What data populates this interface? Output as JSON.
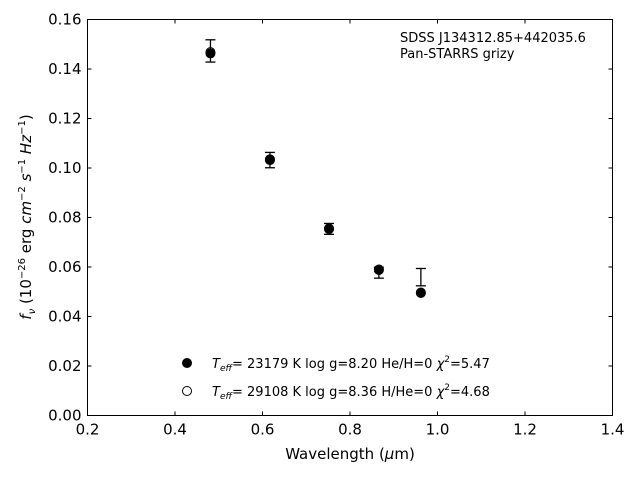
{
  "chart_data": {
    "type": "scatter",
    "xlabel": "Wavelength (μm)",
    "ylabel": "f_ν (10^-26 erg cm^-2 s^-1 Hz^-1)",
    "xlim": [
      0.2,
      1.4
    ],
    "ylim": [
      0.0,
      0.16
    ],
    "x_ticks": [
      "0.2",
      "0.4",
      "0.6",
      "0.8",
      "1.0",
      "1.2",
      "1.4"
    ],
    "y_ticks": [
      "0.00",
      "0.02",
      "0.04",
      "0.06",
      "0.08",
      "0.10",
      "0.12",
      "0.14",
      "0.16"
    ],
    "annotation": [
      "SDSS J134312.85+442035.6",
      "Pan-STARRS grizy"
    ],
    "observed": {
      "x": [
        0.481,
        0.617,
        0.752,
        0.866,
        0.962
      ],
      "y": [
        0.1473,
        0.1032,
        0.0754,
        0.0577,
        0.0559
      ],
      "err": [
        0.0045,
        0.0031,
        0.0022,
        0.0022,
        0.0035
      ]
    },
    "series": [
      {
        "name": "T_eff= 23179 K  log g=8.20  He/H=0  χ²=5.47",
        "marker": "filled-circle",
        "x": [
          0.481,
          0.617,
          0.752,
          0.866,
          0.962
        ],
        "y": [
          0.1463,
          0.1032,
          0.0753,
          0.059,
          0.0495
        ]
      },
      {
        "name": "T_eff= 29108 K  log g=8.36  H/He=0  χ²=4.68",
        "marker": "open-circle",
        "x": [
          0.481,
          0.617,
          0.752,
          0.866,
          0.962
        ],
        "y": [
          0.1468,
          0.1035,
          0.0756,
          0.0588,
          0.0497
        ]
      }
    ],
    "legend_position": "bottom-center",
    "grid": false
  }
}
